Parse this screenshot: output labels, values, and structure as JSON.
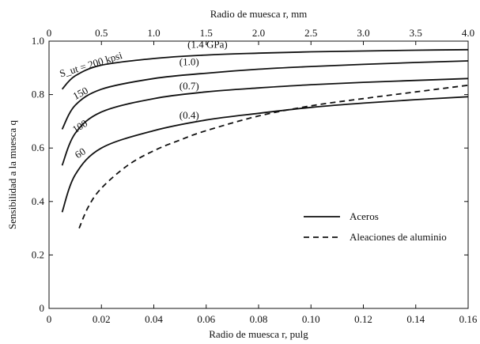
{
  "chart_data": {
    "type": "line",
    "title": "",
    "xlabel": "Radio de muesca r, pulg",
    "xlabel_top": "Radio de muesca r, mm",
    "ylabel": "Sensibilidad a la muesca q",
    "xlim": [
      0,
      0.16
    ],
    "xlim_top": [
      0,
      4.0
    ],
    "ylim": [
      0,
      1.0
    ],
    "x_ticks": [
      "0",
      "0.02",
      "0.04",
      "0.06",
      "0.08",
      "0.10",
      "0.12",
      "0.14",
      "0.16"
    ],
    "x_top_ticks": [
      "0",
      "0.5",
      "1.0",
      "1.5",
      "2.0",
      "2.5",
      "3.0",
      "3.5",
      "4.0"
    ],
    "y_ticks": [
      "0",
      "0.2",
      "0.4",
      "0.6",
      "0.8",
      "1.0"
    ],
    "grid": false,
    "legend_position": "lower-right",
    "legend": [
      {
        "label": "Aceros",
        "style": "solid"
      },
      {
        "label": "Aleaciones de aluminio",
        "style": "dashed"
      }
    ],
    "series": [
      {
        "name": "Aceros",
        "curve_label": "S_ut = 200 kpsi",
        "curve_label_gpa": "(1.4 GPa)",
        "style": "solid",
        "x": [
          0.005,
          0.01,
          0.02,
          0.04,
          0.06,
          0.08,
          0.1,
          0.12,
          0.14,
          0.16
        ],
        "y": [
          0.82,
          0.87,
          0.91,
          0.935,
          0.948,
          0.955,
          0.96,
          0.963,
          0.966,
          0.968
        ]
      },
      {
        "name": "Aceros",
        "curve_label": "150",
        "curve_label_gpa": "(1.0)",
        "style": "solid",
        "x": [
          0.005,
          0.01,
          0.02,
          0.04,
          0.06,
          0.08,
          0.1,
          0.12,
          0.14,
          0.16
        ],
        "y": [
          0.67,
          0.76,
          0.82,
          0.86,
          0.88,
          0.895,
          0.905,
          0.913,
          0.92,
          0.926
        ]
      },
      {
        "name": "Aceros",
        "curve_label": "100",
        "curve_label_gpa": "(0.7)",
        "style": "solid",
        "x": [
          0.005,
          0.01,
          0.02,
          0.04,
          0.06,
          0.08,
          0.1,
          0.12,
          0.14,
          0.16
        ],
        "y": [
          0.535,
          0.655,
          0.735,
          0.785,
          0.81,
          0.825,
          0.837,
          0.846,
          0.853,
          0.86
        ]
      },
      {
        "name": "Aceros",
        "curve_label": "60",
        "curve_label_gpa": "(0.4)",
        "style": "solid",
        "x": [
          0.005,
          0.01,
          0.02,
          0.04,
          0.06,
          0.08,
          0.1,
          0.12,
          0.14,
          0.16
        ],
        "y": [
          0.36,
          0.5,
          0.6,
          0.665,
          0.705,
          0.73,
          0.752,
          0.768,
          0.781,
          0.792
        ]
      },
      {
        "name": "Aleaciones de aluminio",
        "curve_label": "",
        "curve_label_gpa": "",
        "style": "dashed",
        "x": [
          0.0115,
          0.015,
          0.02,
          0.03,
          0.04,
          0.05,
          0.06,
          0.08,
          0.1,
          0.12,
          0.14,
          0.16
        ],
        "y": [
          0.3,
          0.38,
          0.45,
          0.535,
          0.59,
          0.63,
          0.665,
          0.72,
          0.758,
          0.785,
          0.81,
          0.835
        ]
      }
    ]
  }
}
